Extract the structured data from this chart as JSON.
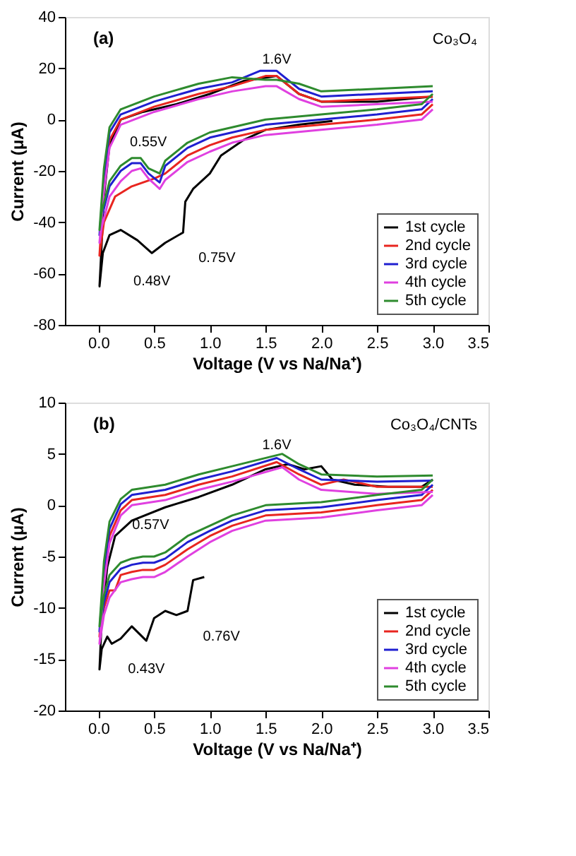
{
  "chart_data": [
    {
      "type": "line",
      "xlabel": "Voltage (V vs Na/Na⁺)",
      "ylabel": "Current (μA)",
      "xlim": [
        -0.3,
        3.5
      ],
      "ylim": [
        -80,
        40
      ],
      "xticks": [
        {
          "value": 0,
          "label": "0.0"
        },
        0.5,
        {
          "value": 1,
          "label": "1.0"
        },
        1.5,
        {
          "value": 2,
          "label": "2.0"
        },
        2.5,
        {
          "value": 3,
          "label": "3.0"
        },
        3.5
      ],
      "yticks": [
        -80,
        -60,
        -40,
        -20,
        0,
        20,
        40
      ],
      "grid": false,
      "legend": "bottom right",
      "line_style": "solid",
      "marker": "none",
      "annotations": [
        "(a)",
        "Co₃O₄",
        {
          "text": "1.6V",
          "x": 1.6,
          "y": 17
        },
        {
          "text": "0.55V",
          "x": 0.55,
          "y": -23
        },
        {
          "text": "0.48V",
          "x": 0.48,
          "y": -52
        },
        {
          "text": "0.75V",
          "x": 0.76,
          "y": -44
        }
      ],
      "series": [
        {
          "name": "1st cycle",
          "color": "#000000",
          "x": [
            2.1,
            1.8,
            1.5,
            1.3,
            1.1,
            1.0,
            0.85,
            0.78,
            0.76,
            0.6,
            0.48,
            0.35,
            0.2,
            0.1,
            0.04,
            0.01,
            0.03,
            0.05,
            0.1,
            0.2,
            0.4,
            0.7,
            1.0,
            1.3,
            1.6,
            1.8,
            2.0,
            2.5,
            3.0
          ],
          "values": [
            -0.5,
            -2,
            -4,
            -8,
            -14,
            -21,
            -27,
            -32,
            -44,
            -48,
            -52,
            -47,
            -43,
            -45,
            -52,
            -65,
            -48,
            -30,
            -10,
            0,
            3,
            6,
            10,
            15,
            17,
            10,
            7,
            7,
            9
          ]
        },
        {
          "name": "2nd cycle",
          "color": "#e8251f",
          "x": [
            3.0,
            2.9,
            2.5,
            2.0,
            1.5,
            1.2,
            1.0,
            0.8,
            0.6,
            0.5,
            0.3,
            0.15,
            0.05,
            0.01,
            0.05,
            0.1,
            0.2,
            0.5,
            0.9,
            1.2,
            1.5,
            1.6,
            1.8,
            2.0,
            2.5,
            3.0
          ],
          "values": [
            6,
            2,
            0,
            -2,
            -4,
            -7,
            -10,
            -14,
            -21,
            -23,
            -26,
            -30,
            -40,
            -53,
            -25,
            -8,
            0,
            5,
            10,
            13,
            17,
            17,
            10,
            7,
            8,
            9
          ]
        },
        {
          "name": "3rd cycle",
          "color": "#1f1fd0",
          "x": [
            3.0,
            2.9,
            2.5,
            2.0,
            1.5,
            1.2,
            1.0,
            0.8,
            0.6,
            0.55,
            0.45,
            0.38,
            0.3,
            0.2,
            0.1,
            0.03,
            0.01,
            0.05,
            0.1,
            0.2,
            0.5,
            0.9,
            1.2,
            1.45,
            1.6,
            1.8,
            2.0,
            2.5,
            3.0
          ],
          "values": [
            8,
            4,
            2,
            0,
            -2,
            -5,
            -7,
            -11,
            -18,
            -24.5,
            -21,
            -17,
            -17,
            -20,
            -26,
            -38,
            -45,
            -22,
            -5,
            2,
            7,
            12,
            14.5,
            19,
            19,
            12,
            9,
            10,
            11
          ]
        },
        {
          "name": "4th cycle",
          "color": "#e040e0",
          "x": [
            3.0,
            2.9,
            2.5,
            2.0,
            1.5,
            1.2,
            1.0,
            0.8,
            0.6,
            0.55,
            0.45,
            0.38,
            0.3,
            0.2,
            0.1,
            0.03,
            0.01,
            0.05,
            0.1,
            0.2,
            0.5,
            0.9,
            1.2,
            1.5,
            1.6,
            1.8,
            2.0,
            2.5,
            3.0
          ],
          "values": [
            4,
            0,
            -2,
            -4,
            -6,
            -9,
            -12.5,
            -16.5,
            -23.5,
            -27,
            -23,
            -19,
            -20,
            -24,
            -30,
            -42,
            -48,
            -28,
            -11,
            -2,
            3,
            8,
            11,
            13,
            13,
            8,
            5,
            6,
            7
          ]
        },
        {
          "name": "5th cycle",
          "color": "#2e8b2e",
          "x": [
            3.0,
            2.9,
            2.5,
            2.0,
            1.5,
            1.2,
            1.0,
            0.8,
            0.6,
            0.55,
            0.45,
            0.38,
            0.3,
            0.2,
            0.1,
            0.03,
            0.01,
            0.05,
            0.1,
            0.2,
            0.5,
            0.9,
            1.2,
            1.5,
            1.6,
            1.8,
            2.0,
            2.5,
            3.0
          ],
          "values": [
            10,
            6,
            4,
            2,
            0,
            -3,
            -5,
            -9,
            -16,
            -21,
            -19,
            -15,
            -15,
            -18,
            -24,
            -36,
            -43,
            -19,
            -3,
            4,
            9,
            14,
            16.5,
            15.5,
            15.5,
            14,
            11,
            12,
            13
          ]
        }
      ]
    },
    {
      "type": "line",
      "xlabel": "Voltage (V vs Na/Na⁺)",
      "ylabel": "Current (μA)",
      "xlim": [
        -0.3,
        3.5
      ],
      "ylim": [
        -20,
        10
      ],
      "xticks": [
        {
          "value": 0,
          "label": "0.0"
        },
        0.5,
        {
          "value": 1,
          "label": "1.0"
        },
        1.5,
        {
          "value": 2,
          "label": "2.0"
        },
        2.5,
        {
          "value": 3,
          "label": "3.0"
        },
        3.5
      ],
      "yticks": [
        -20,
        -15,
        -10,
        -5,
        0,
        5,
        10
      ],
      "grid": false,
      "legend": "bottom right",
      "line_style": "solid",
      "marker": "none",
      "annotations": [
        "(b)",
        "Co₃O₄/CNTs",
        {
          "text": "1.6V",
          "x": 1.6,
          "y": 4.2
        },
        {
          "text": "0.57V",
          "x": 0.57,
          "y": -5.5
        },
        {
          "text": "0.43V",
          "x": 0.43,
          "y": -13.2
        },
        {
          "text": "0.76V",
          "x": 0.8,
          "y": -10.3
        }
      ],
      "series": [
        {
          "name": "1st cycle",
          "color": "#000000",
          "x": [
            0.95,
            0.85,
            0.8,
            0.7,
            0.6,
            0.5,
            0.43,
            0.3,
            0.2,
            0.12,
            0.08,
            0.03,
            0.01,
            0.03,
            0.08,
            0.15,
            0.3,
            0.6,
            0.9,
            1.2,
            1.5,
            1.7,
            1.85,
            2.0,
            2.1,
            2.3,
            2.6,
            2.9,
            3.0
          ],
          "values": [
            -7,
            -7.3,
            -10.3,
            -10.7,
            -10.3,
            -11,
            -13.2,
            -11.8,
            -13,
            -13.5,
            -12.8,
            -14,
            -16,
            -11,
            -6,
            -3,
            -1.5,
            -0.2,
            0.8,
            2,
            3.5,
            4,
            3.5,
            3.8,
            2.5,
            2,
            1.8,
            1.8,
            2.5
          ]
        },
        {
          "name": "2nd cycle",
          "color": "#e8251f",
          "x": [
            3.0,
            2.9,
            2.5,
            2.0,
            1.5,
            1.2,
            1.0,
            0.8,
            0.6,
            0.5,
            0.4,
            0.3,
            0.2,
            0.15,
            0.1,
            0.05,
            0.01,
            0.05,
            0.1,
            0.2,
            0.3,
            0.6,
            0.9,
            1.2,
            1.6,
            1.8,
            2.0,
            2.2,
            2.5,
            3.0
          ],
          "values": [
            1.5,
            0.5,
            0,
            -0.7,
            -1,
            -2,
            -3,
            -4.3,
            -5.8,
            -6.3,
            -6.3,
            -6.5,
            -6.8,
            -8.3,
            -8.3,
            -10,
            -12.8,
            -7,
            -3,
            -0.5,
            0.5,
            1,
            2,
            2.8,
            4.2,
            3,
            2,
            2.5,
            1.8,
            1.8
          ]
        },
        {
          "name": "3rd cycle",
          "color": "#1f1fd0",
          "x": [
            3.0,
            2.9,
            2.5,
            2.0,
            1.5,
            1.2,
            1.0,
            0.8,
            0.6,
            0.5,
            0.4,
            0.3,
            0.2,
            0.1,
            0.05,
            0.01,
            0.05,
            0.1,
            0.2,
            0.3,
            0.6,
            0.9,
            1.2,
            1.6,
            1.8,
            2.0,
            2.5,
            3.0
          ],
          "values": [
            2.0,
            1.0,
            0.5,
            -0.2,
            -0.5,
            -1.5,
            -2.5,
            -3.6,
            -5.2,
            -5.6,
            -5.6,
            -5.8,
            -6.2,
            -7.5,
            -9.5,
            -12.3,
            -6.2,
            -2.3,
            0.1,
            1.0,
            1.5,
            2.5,
            3.3,
            4.6,
            3.5,
            2.5,
            2.3,
            2.4
          ]
        },
        {
          "name": "4th cycle",
          "color": "#e040e0",
          "x": [
            3.0,
            2.9,
            2.5,
            2.0,
            1.5,
            1.2,
            1.0,
            0.8,
            0.6,
            0.5,
            0.4,
            0.3,
            0.2,
            0.1,
            0.05,
            0.01,
            0.05,
            0.1,
            0.2,
            0.3,
            0.6,
            0.9,
            1.2,
            1.65,
            1.8,
            2.0,
            2.5,
            3.0
          ],
          "values": [
            1.0,
            0,
            -0.5,
            -1.2,
            -1.5,
            -2.5,
            -3.6,
            -5.0,
            -6.5,
            -7.0,
            -7.0,
            -7.2,
            -7.5,
            -9.0,
            -10.7,
            -13.5,
            -7.8,
            -3.7,
            -1.0,
            0.0,
            0.5,
            1.5,
            2.3,
            3.7,
            2.5,
            1.5,
            1.1,
            1.3
          ]
        },
        {
          "name": "5th cycle",
          "color": "#2e8b2e",
          "x": [
            3.0,
            2.9,
            2.5,
            2.0,
            1.5,
            1.2,
            1.0,
            0.8,
            0.6,
            0.5,
            0.4,
            0.3,
            0.2,
            0.1,
            0.05,
            0.01,
            0.05,
            0.1,
            0.2,
            0.3,
            0.6,
            0.9,
            1.2,
            1.65,
            1.8,
            2.0,
            2.5,
            3.0
          ],
          "values": [
            2.5,
            1.5,
            1.0,
            0.3,
            0,
            -1.0,
            -2.0,
            -3.0,
            -4.6,
            -5.0,
            -5.0,
            -5.2,
            -5.6,
            -6.8,
            -8.8,
            -11.8,
            -5.5,
            -1.6,
            0.6,
            1.5,
            2.0,
            3.0,
            3.8,
            5.0,
            4.0,
            3.0,
            2.8,
            2.9
          ]
        }
      ]
    }
  ]
}
